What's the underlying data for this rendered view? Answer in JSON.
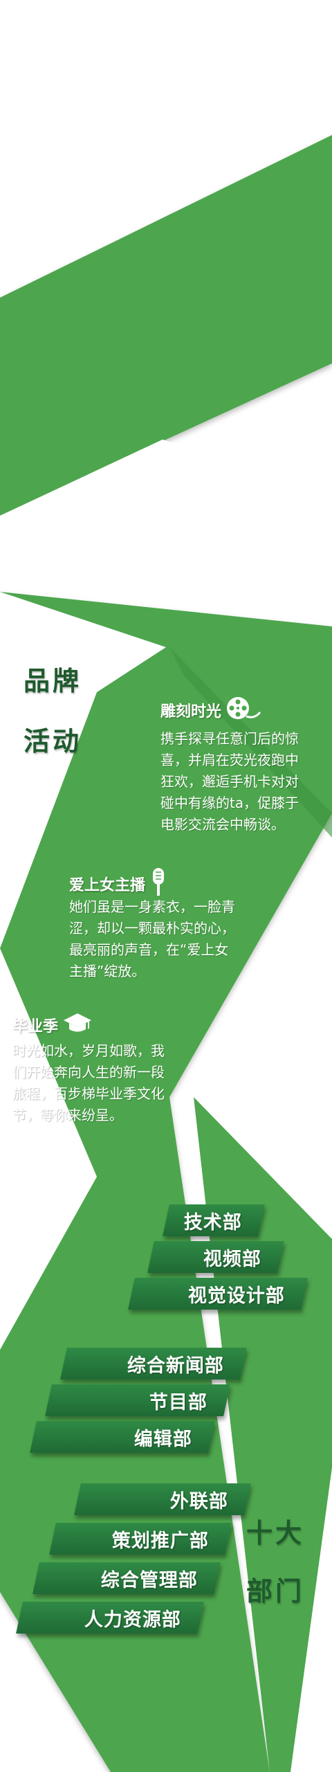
{
  "brand_heading": [
    "品牌",
    "活动"
  ],
  "activities": [
    {
      "title": "雕刻时光",
      "icon": "film-reel-icon",
      "lines": [
        "携手探寻任意门后的惊",
        "喜，并肩在荧光夜跑中",
        "狂欢，邂逅手机卡对对",
        "碰中有缘的ta，促膝于",
        "电影交流会中畅谈。"
      ]
    },
    {
      "title": "爱上女主播",
      "icon": "microphone-icon",
      "lines": [
        "她们虽是一身素衣，一脸青",
        "涩，却以一颗最朴实的心，",
        "最亮丽的声音，在“爱上女",
        "主播”绽放。"
      ]
    },
    {
      "title": "毕业季",
      "icon": "graduation-cap-icon",
      "lines": [
        "时光如水，岁月如歌，我",
        "们开始奔向人生的新一段",
        "旅程，百步梯毕业季文化",
        "节，等你来纷呈。"
      ]
    }
  ],
  "departments": [
    "技术部",
    "视频部",
    "视觉设计部",
    "综合新闻部",
    "节目部",
    "编辑部",
    "外联部",
    "策划推广部",
    "综合管理部",
    "人力资源部"
  ],
  "dept_heading": [
    "十大",
    "部门"
  ],
  "colors": {
    "green": "#4ea64e",
    "dark_green": "#1f6a35",
    "heading": "#1f5a2e",
    "background": "#ffffff"
  }
}
